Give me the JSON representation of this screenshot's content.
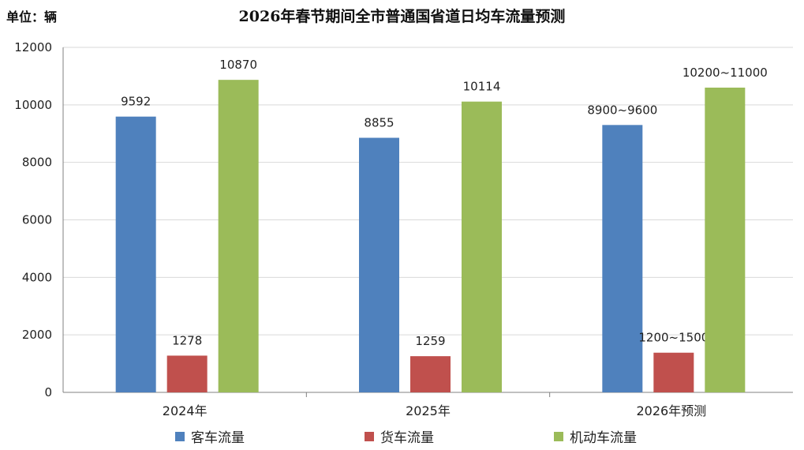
{
  "unit_label": "单位：辆",
  "colors": {
    "passenger": "#4f81bd",
    "freight": "#c0504d",
    "motor": "#9bbb59",
    "axis": "#808080",
    "grid": "#d9d9d9"
  },
  "chart_data": {
    "type": "bar",
    "title": "2026年春节期间全市普通国省道日均车流量预测",
    "xlabel": "",
    "ylabel": "",
    "ylim": [
      0,
      12000
    ],
    "yticks": [
      0,
      2000,
      4000,
      6000,
      8000,
      10000,
      12000
    ],
    "categories": [
      "2024年",
      "2025年",
      "2026年预测"
    ],
    "grid": true,
    "legend_position": "bottom",
    "series": [
      {
        "name": "客车流量",
        "color": "#4f81bd",
        "values": [
          9592,
          8855,
          9300
        ],
        "labels": [
          "9592",
          "8855",
          "8900~9600"
        ]
      },
      {
        "name": "货车流量",
        "color": "#c0504d",
        "values": [
          1278,
          1259,
          1380
        ],
        "labels": [
          "1278",
          "1259",
          "1200~1500"
        ]
      },
      {
        "name": "机动车流量",
        "color": "#9bbb59",
        "values": [
          10870,
          10114,
          10600
        ],
        "labels": [
          "10870",
          "10114",
          "10200~11000"
        ]
      }
    ]
  }
}
